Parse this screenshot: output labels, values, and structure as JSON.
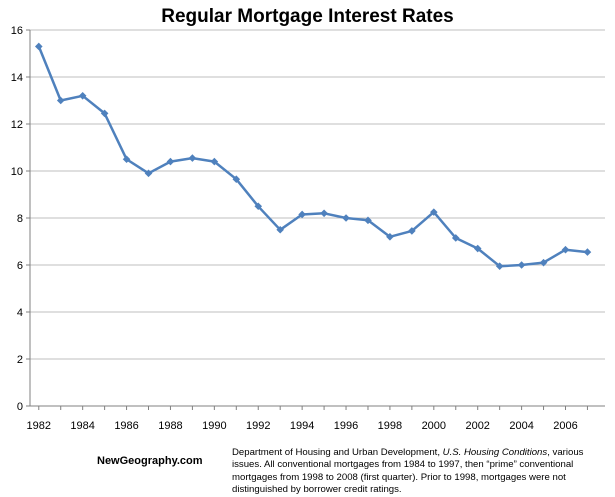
{
  "chart_data": {
    "type": "line",
    "title": "Regular Mortgage Interest Rates",
    "xlabel": "",
    "ylabel": "",
    "x": [
      1982,
      1983,
      1984,
      1985,
      1986,
      1987,
      1988,
      1989,
      1990,
      1991,
      1992,
      1993,
      1994,
      1995,
      1996,
      1997,
      1998,
      1999,
      2000,
      2001,
      2002,
      2003,
      2004,
      2005,
      2006,
      2007
    ],
    "series": [
      {
        "name": "",
        "values": [
          15.3,
          13.0,
          13.2,
          12.45,
          10.5,
          9.9,
          10.4,
          10.55,
          10.4,
          9.65,
          8.5,
          7.5,
          8.15,
          8.2,
          8.0,
          7.9,
          7.2,
          7.45,
          8.25,
          7.15,
          6.7,
          5.95,
          6.0,
          6.1,
          6.65,
          6.55
        ],
        "color": "#4f81bd"
      }
    ],
    "ylim": [
      0,
      16
    ],
    "yticks": [
      "0",
      "2",
      "4",
      "6",
      "8",
      "10",
      "12",
      "14",
      "16"
    ],
    "xtick_years": [
      "1982",
      "1984",
      "1986",
      "1988",
      "1990",
      "1992",
      "1994",
      "1996",
      "1998",
      "2000",
      "2002",
      "2004",
      "2006"
    ],
    "grid": true,
    "legend": "none"
  },
  "source": {
    "site": "NewGeography.com",
    "note_before": "Department of Housing and Urban Development, ",
    "note_italic": "U.S. Housing Conditions",
    "note_after": ", various issues. All conventional mortgages from 1984 to 1997, then “prime” conventional mortgages from 1998 to 2008 (first quarter). Prior to 1998, mortgages were not distinguished by borrower credit ratings."
  }
}
